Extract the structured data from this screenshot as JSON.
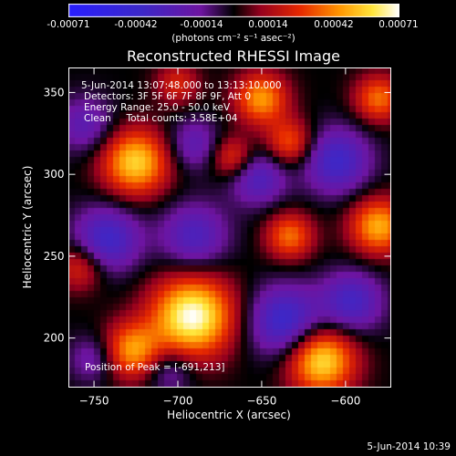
{
  "colorbar": {
    "tick_labels": [
      "-0.00071",
      "-0.00042",
      "-0.00014",
      "0.00014",
      "0.00042",
      "0.00071"
    ],
    "units": "(photons cm⁻² s⁻¹ asec⁻²)",
    "range": [
      -0.00071,
      0.00071
    ]
  },
  "chart_data": {
    "type": "heatmap",
    "title": "Reconstructed RHESSI Image",
    "xlabel": "Heliocentric X (arcsec)",
    "ylabel": "Heliocentric Y (arcsec)",
    "xlim": [
      -765,
      -573
    ],
    "ylim": [
      170,
      365
    ],
    "xticks": [
      -750,
      -700,
      -650,
      -600
    ],
    "yticks": [
      200,
      250,
      300,
      350
    ],
    "colormap": "blue-purple-red-yellow-white",
    "sources": [
      {
        "x": -691,
        "y": 213,
        "intensity": 1.0,
        "sigma": 17
      },
      {
        "x": -725,
        "y": 307,
        "intensity": 0.8,
        "sigma": 14
      },
      {
        "x": -614,
        "y": 186,
        "intensity": 0.85,
        "sigma": 14
      },
      {
        "x": -727,
        "y": 192,
        "intensity": 0.65,
        "sigma": 12
      },
      {
        "x": -580,
        "y": 268,
        "intensity": 0.7,
        "sigma": 12
      },
      {
        "x": -650,
        "y": 346,
        "intensity": 0.65,
        "sigma": 11
      },
      {
        "x": -633,
        "y": 262,
        "intensity": 0.55,
        "sigma": 10
      },
      {
        "x": -633,
        "y": 319,
        "intensity": 0.5,
        "sigma": 10
      },
      {
        "x": -667,
        "y": 310,
        "intensity": 0.45,
        "sigma": 9
      },
      {
        "x": -758,
        "y": 243,
        "intensity": 0.4,
        "sigma": 10
      },
      {
        "x": -700,
        "y": 355,
        "intensity": 0.35,
        "sigma": 9
      },
      {
        "x": -580,
        "y": 346,
        "intensity": 0.55,
        "sigma": 10
      },
      {
        "x": -742,
        "y": 260,
        "intensity": -0.55,
        "sigma": 14
      },
      {
        "x": -690,
        "y": 262,
        "intensity": -0.45,
        "sigma": 14
      },
      {
        "x": -636,
        "y": 210,
        "intensity": -0.6,
        "sigma": 15
      },
      {
        "x": -596,
        "y": 222,
        "intensity": -0.5,
        "sigma": 13
      },
      {
        "x": -605,
        "y": 308,
        "intensity": -0.55,
        "sigma": 14
      },
      {
        "x": -652,
        "y": 298,
        "intensity": -0.45,
        "sigma": 12
      },
      {
        "x": -690,
        "y": 318,
        "intensity": -0.35,
        "sigma": 11
      },
      {
        "x": -755,
        "y": 330,
        "intensity": -0.35,
        "sigma": 12
      },
      {
        "x": -705,
        "y": 180,
        "intensity": -0.3,
        "sigma": 10
      },
      {
        "x": -750,
        "y": 187,
        "intensity": -0.3,
        "sigma": 10
      }
    ],
    "annotations": {
      "time_range": "5-Jun-2014 13:07:48.000 to 13:13:10.000",
      "detectors": "Detectors: 3F 5F 6F 7F 8F 9F, Att 0",
      "energy_range": "Energy Range: 25.0 - 50.0 keV",
      "method_counts": "Clean     Total counts: 3.58E+04",
      "peak_position": "Position of Peak = [-691,213]"
    }
  },
  "footer_date": "5-Jun-2014 10:39"
}
